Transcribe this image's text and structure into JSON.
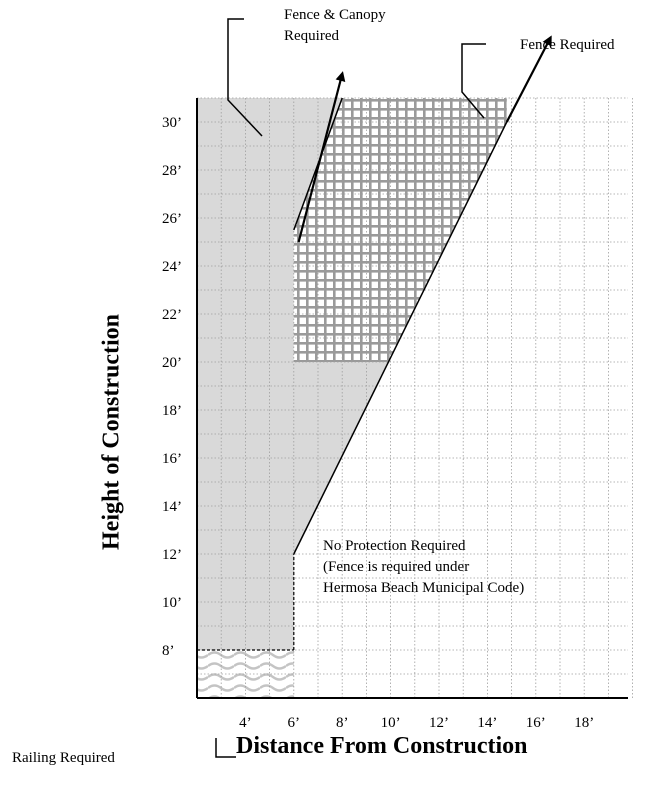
{
  "chart_data": {
    "type": "area",
    "title": "",
    "xlabel": "Distance From Construction",
    "ylabel": "Height of Construction",
    "xlim": [
      2,
      20
    ],
    "ylim": [
      6,
      31
    ],
    "grid": true,
    "x_ticks": [
      {
        "value": 4,
        "label": "4’"
      },
      {
        "value": 6,
        "label": "6’"
      },
      {
        "value": 8,
        "label": "8’"
      },
      {
        "value": 10,
        "label": "10’"
      },
      {
        "value": 12,
        "label": "12’"
      },
      {
        "value": 14,
        "label": "14’"
      },
      {
        "value": 16,
        "label": "16’"
      },
      {
        "value": 18,
        "label": "18’"
      }
    ],
    "y_ticks": [
      {
        "value": 8,
        "label": "8’"
      },
      {
        "value": 10,
        "label": "10’"
      },
      {
        "value": 12,
        "label": "12’"
      },
      {
        "value": 14,
        "label": "14’"
      },
      {
        "value": 16,
        "label": "16’"
      },
      {
        "value": 18,
        "label": "18’"
      },
      {
        "value": 20,
        "label": "20’"
      },
      {
        "value": 22,
        "label": "22’"
      },
      {
        "value": 24,
        "label": "24’"
      },
      {
        "value": 26,
        "label": "26’"
      },
      {
        "value": 28,
        "label": "28’"
      },
      {
        "value": 30,
        "label": "30’"
      }
    ],
    "regions": [
      {
        "label": "Fence Required",
        "fill": "#d9d9d9",
        "pattern": "solid",
        "polygon": [
          [
            2,
            8
          ],
          [
            2,
            31
          ],
          [
            8,
            31
          ],
          [
            6,
            25.5
          ],
          [
            6,
            20
          ],
          [
            9.9,
            20
          ],
          [
            6,
            12
          ],
          [
            6,
            8
          ]
        ]
      },
      {
        "label": "Fence & Canopy Required",
        "fill": "#bdbdbd",
        "pattern": "grid",
        "polygon": [
          [
            6,
            20
          ],
          [
            6,
            25.5
          ],
          [
            8,
            31
          ],
          [
            14.8,
            31
          ],
          [
            14.8,
            30
          ],
          [
            9.9,
            20
          ]
        ]
      },
      {
        "label": "Railing Required",
        "fill": "#cccccc",
        "pattern": "wave",
        "polygon": [
          [
            2,
            6
          ],
          [
            2,
            8
          ],
          [
            6,
            8
          ],
          [
            6,
            6
          ]
        ]
      }
    ],
    "lines": [
      {
        "points": [
          [
            6,
            12
          ],
          [
            14.8,
            30
          ]
        ]
      },
      {
        "points": [
          [
            6,
            25.5
          ],
          [
            8,
            31
          ]
        ]
      },
      {
        "points": [
          [
            6,
            8
          ],
          [
            6,
            12
          ]
        ],
        "dashed": true
      },
      {
        "points": [
          [
            2,
            8
          ],
          [
            6,
            8
          ]
        ],
        "dashed": true
      }
    ],
    "arrows": [
      {
        "points": [
          [
            6.2,
            25
          ],
          [
            8,
            32
          ]
        ]
      },
      {
        "points": [
          [
            14.8,
            30
          ],
          [
            16.6,
            33.5
          ]
        ]
      }
    ],
    "callouts": [
      {
        "lines": [
          "Fence & Canopy",
          "Required"
        ]
      },
      {
        "lines": [
          "Fence Required"
        ]
      },
      {
        "lines": [
          "Railing Required"
        ]
      }
    ],
    "annotation": {
      "x": 12,
      "y": 12,
      "lines": [
        "No Protection Required",
        "(Fence is required under",
        "Hermosa Beach Municipal Code)"
      ]
    }
  }
}
